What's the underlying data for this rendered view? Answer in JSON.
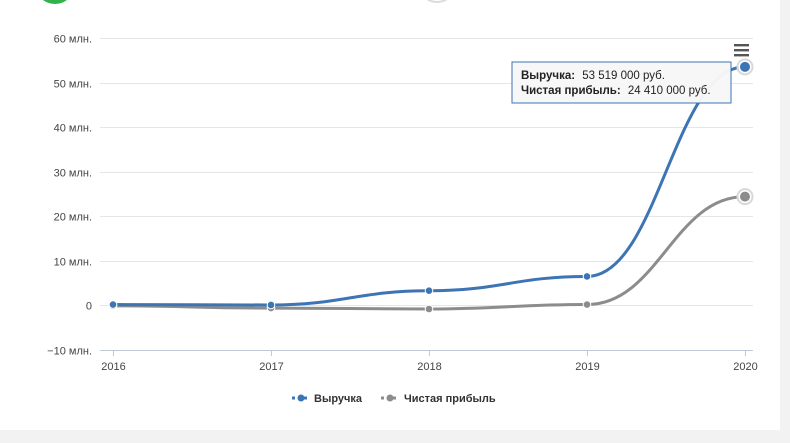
{
  "chart_data": {
    "type": "line",
    "categories": [
      "2016",
      "2017",
      "2018",
      "2019",
      "2020"
    ],
    "series": [
      {
        "name": "Выручка",
        "values": [
          0.2,
          0.1,
          3.3,
          6.5,
          53.519
        ],
        "color": "#3d74b4"
      },
      {
        "name": "Чистая прибыль",
        "values": [
          -0.1,
          -0.6,
          -0.8,
          0.2,
          24.41
        ],
        "color": "#8c8c8c"
      }
    ],
    "yticks": [
      -10,
      0,
      10,
      20,
      30,
      40,
      50,
      60
    ],
    "ytick_labels": [
      "−10 млн.",
      "0",
      "10 млн.",
      "20 млн.",
      "30 млн.",
      "40 млн.",
      "50 млн.",
      "60 млн."
    ],
    "ylim": [
      -10,
      60
    ],
    "grid": true,
    "legend": "bottom-center",
    "tooltip": {
      "lines": [
        {
          "label": "Выручка:",
          "value": "53 519 000 руб."
        },
        {
          "label": "Чистая прибыль:",
          "value": "24 410 000 руб."
        }
      ]
    },
    "menu_icon": "hamburger-icon"
  }
}
